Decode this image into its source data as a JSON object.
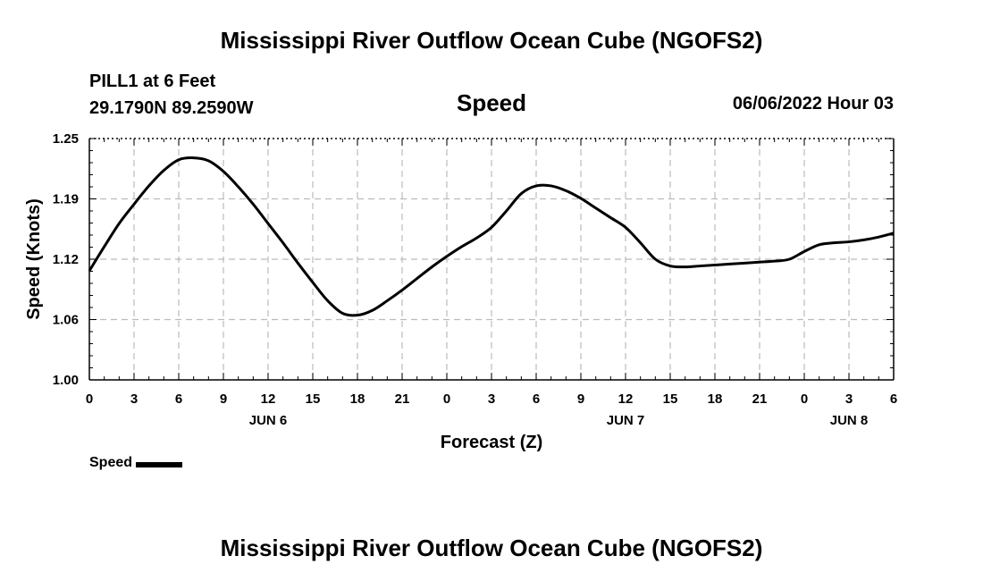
{
  "header": {
    "title": "Mississippi River Outflow Ocean Cube (NGOFS2)",
    "station_line1": "PILL1 at 6 Feet",
    "station_line2": "29.1790N  89.2590W",
    "datetime": "06/06/2022 Hour 03"
  },
  "footer": {
    "title": "Mississippi River Outflow Ocean Cube (NGOFS2)"
  },
  "chart_data": {
    "type": "line",
    "title": "Speed",
    "xlabel": "Forecast (Z)",
    "ylabel": "Speed (Knots)",
    "xlim": [
      0,
      54
    ],
    "ylim": [
      1.0,
      1.25
    ],
    "yticks": [
      "1.00",
      "1.06",
      "1.12",
      "1.19",
      "1.25"
    ],
    "ytick_values": [
      1.0,
      1.0625,
      1.125,
      1.1875,
      1.25
    ],
    "xticks": [
      0,
      3,
      6,
      9,
      12,
      15,
      18,
      21,
      24,
      27,
      30,
      33,
      36,
      39,
      42,
      45,
      48,
      51,
      54
    ],
    "xtick_labels": [
      "0",
      "3",
      "6",
      "9",
      "12",
      "15",
      "18",
      "21",
      "0",
      "3",
      "6",
      "9",
      "12",
      "15",
      "18",
      "21",
      "0",
      "3",
      "6"
    ],
    "day_labels": [
      {
        "label": "JUN 6",
        "hour": 12
      },
      {
        "label": "JUN 7",
        "hour": 36
      },
      {
        "label": "JUN 8",
        "hour": 51
      }
    ],
    "grid": true,
    "series": [
      {
        "name": "Speed",
        "color": "#000000",
        "x": [
          0,
          1,
          2,
          3,
          4,
          5,
          6,
          7,
          8,
          9,
          10,
          11,
          12,
          13,
          14,
          15,
          16,
          17,
          18,
          19,
          20,
          21,
          22,
          23,
          24,
          25,
          26,
          27,
          28,
          29,
          30,
          31,
          32,
          33,
          34,
          35,
          36,
          37,
          38,
          39,
          40,
          41,
          42,
          43,
          44,
          45,
          46,
          47,
          48,
          49,
          50,
          51,
          52,
          53,
          54
        ],
        "values": [
          1.113,
          1.138,
          1.162,
          1.182,
          1.201,
          1.217,
          1.228,
          1.23,
          1.227,
          1.216,
          1.2,
          1.182,
          1.162,
          1.142,
          1.121,
          1.101,
          1.082,
          1.069,
          1.067,
          1.072,
          1.082,
          1.093,
          1.105,
          1.117,
          1.128,
          1.138,
          1.147,
          1.158,
          1.175,
          1.193,
          1.201,
          1.201,
          1.196,
          1.188,
          1.178,
          1.168,
          1.158,
          1.142,
          1.125,
          1.118,
          1.117,
          1.118,
          1.119,
          1.12,
          1.121,
          1.122,
          1.123,
          1.125,
          1.133,
          1.14,
          1.142,
          1.143,
          1.145,
          1.148,
          1.152
        ]
      }
    ],
    "legend": "bottom-left"
  }
}
